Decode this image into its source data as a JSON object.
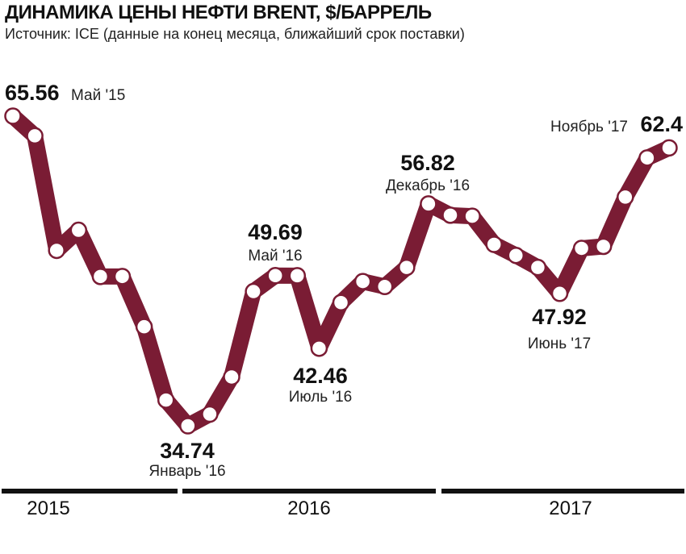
{
  "chart_data": {
    "type": "line",
    "title": "ДИНАМИКА ЦЕНЫ НЕФТИ BRENT, $/БАРРЕЛЬ",
    "subtitle": "Источник: ICE (данные на конец месяца, ближайший срок поставки)",
    "unit": "$/баррель",
    "line_color": "#7a1c34",
    "x": [
      "May-15",
      "Jun-15",
      "Jul-15",
      "Aug-15",
      "Sep-15",
      "Oct-15",
      "Nov-15",
      "Dec-15",
      "Jan-16",
      "Feb-16",
      "Mar-16",
      "Apr-16",
      "May-16",
      "Jun-16",
      "Jul-16",
      "Aug-16",
      "Sep-16",
      "Oct-16",
      "Nov-16",
      "Dec-16",
      "Jan-17",
      "Feb-17",
      "Mar-17",
      "Apr-17",
      "May-17",
      "Jun-17",
      "Jul-17",
      "Aug-17",
      "Sep-17",
      "Oct-17",
      "Nov-17"
    ],
    "values": [
      65.56,
      63.6,
      52.2,
      54.2,
      49.6,
      49.6,
      44.6,
      37.3,
      34.74,
      35.9,
      39.6,
      48.1,
      49.69,
      49.68,
      42.46,
      47.0,
      49.1,
      48.6,
      50.5,
      56.82,
      55.7,
      55.6,
      52.8,
      51.7,
      50.5,
      47.92,
      52.4,
      52.6,
      57.5,
      61.4,
      62.4
    ],
    "annotations": [
      {
        "index": 0,
        "value": "65.56",
        "label": "Май '15"
      },
      {
        "index": 8,
        "value": "34.74",
        "label": "Январь '16"
      },
      {
        "index": 12,
        "value": "49.69",
        "label": "Май '16"
      },
      {
        "index": 14,
        "value": "42.46",
        "label": "Июль '16"
      },
      {
        "index": 19,
        "value": "56.82",
        "label": "Декабрь '16"
      },
      {
        "index": 25,
        "value": "47.92",
        "label": "Июнь '17"
      },
      {
        "index": 30,
        "value": "62.4",
        "label": "Ноябрь '17"
      }
    ],
    "years": [
      "2015",
      "2016",
      "2017"
    ],
    "ylim": [
      30,
      70
    ]
  }
}
